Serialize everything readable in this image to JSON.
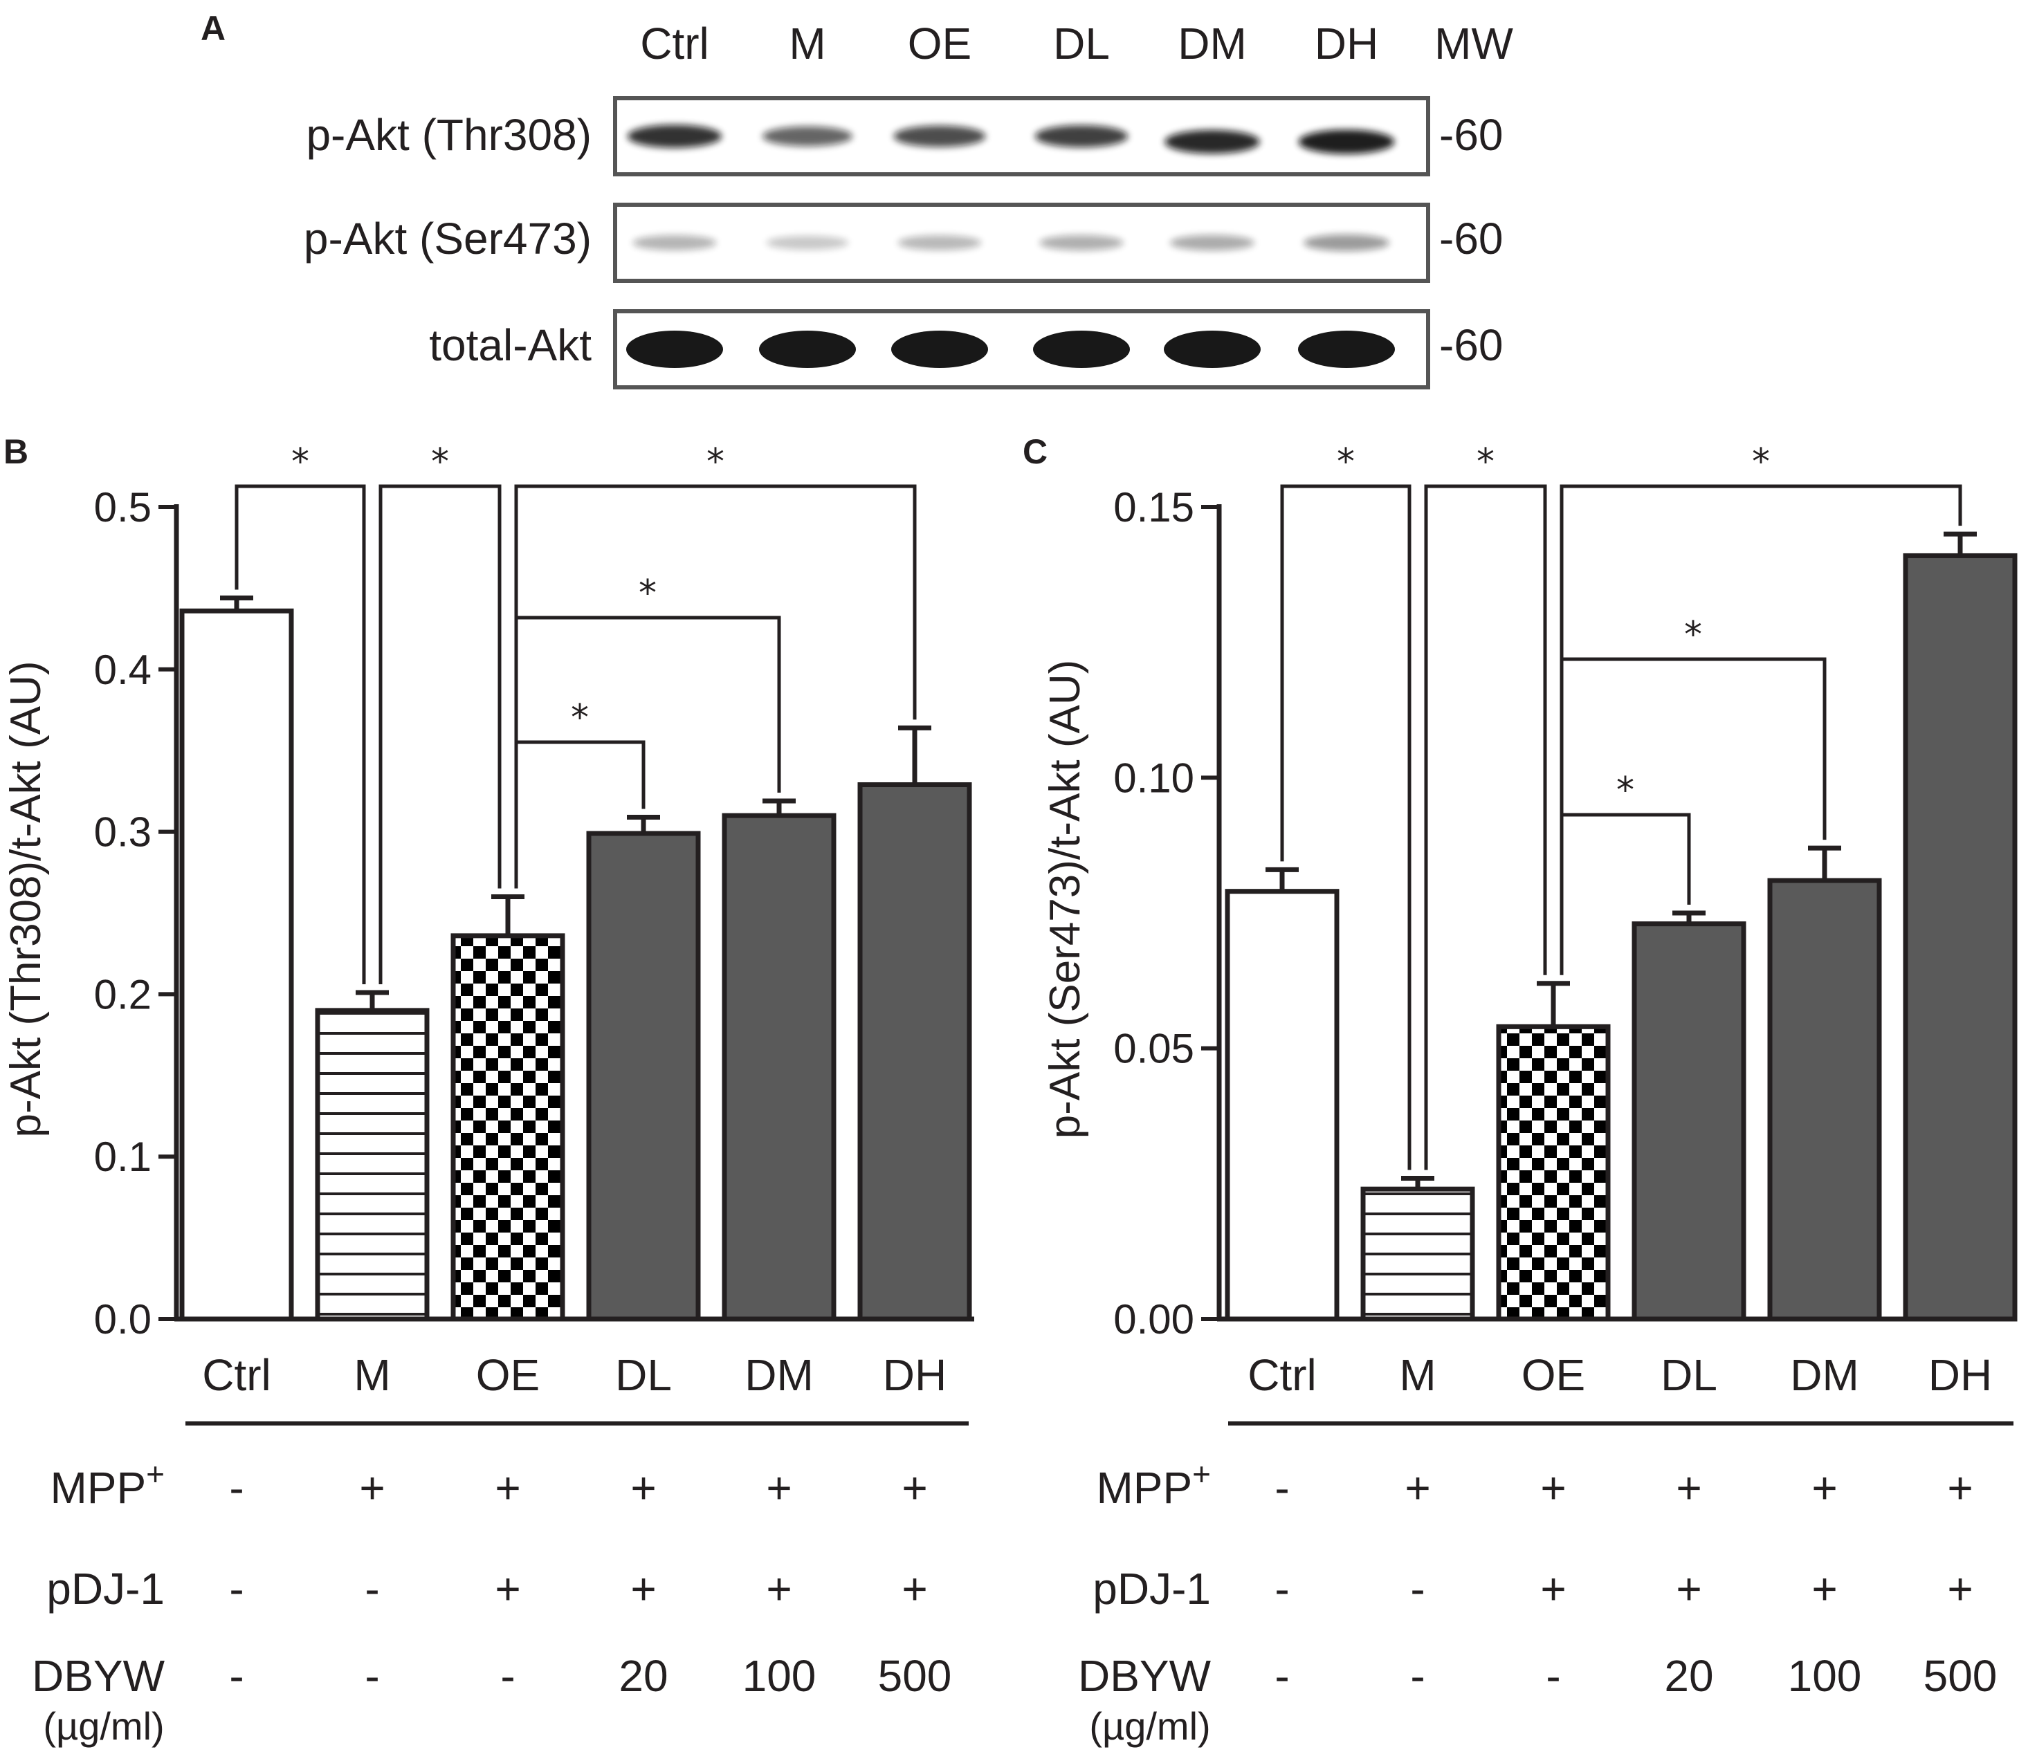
{
  "panel_a": {
    "label": "A",
    "lanes": [
      "Ctrl",
      "M",
      "OE",
      "DL",
      "DM",
      "DH"
    ],
    "mw_header": "MW",
    "blots": [
      {
        "label": "p-Akt (Thr308)",
        "mw": "-60",
        "intensities": [
          0.85,
          0.6,
          0.72,
          0.78,
          0.9,
          0.95
        ]
      },
      {
        "label": "p-Akt (Ser473)",
        "mw": "-60",
        "intensities": [
          0.22,
          0.12,
          0.2,
          0.24,
          0.26,
          0.34
        ]
      },
      {
        "label": "total-Akt",
        "mw": "-60",
        "intensities": [
          1.0,
          1.0,
          1.0,
          1.0,
          1.0,
          1.0
        ]
      }
    ]
  },
  "chart_data": [
    {
      "panel": "B",
      "type": "bar",
      "categories": [
        "Ctrl",
        "M",
        "OE",
        "DL",
        "DM",
        "DH"
      ],
      "values": [
        0.436,
        0.19,
        0.236,
        0.299,
        0.31,
        0.329
      ],
      "errors": [
        0.008,
        0.011,
        0.024,
        0.01,
        0.009,
        0.035
      ],
      "patterns": [
        "white",
        "hlines",
        "checker",
        "gray",
        "gray",
        "gray"
      ],
      "ylabel": "p-Akt (Thr308)/t-Akt (AU)",
      "ylim": [
        0,
        0.5
      ],
      "yticks": [
        "0.0",
        "0.1",
        "0.2",
        "0.3",
        "0.4",
        "0.5"
      ],
      "yticks_values": [
        0,
        0.1,
        0.2,
        0.3,
        0.4,
        0.5
      ],
      "significance": [
        {
          "from": 0,
          "to": 1,
          "level": 0,
          "label": "*"
        },
        {
          "from": 1,
          "to": 2,
          "level": 0,
          "label": "*"
        },
        {
          "from": 2,
          "to": 5,
          "level": 0,
          "label": "*"
        },
        {
          "from": 2,
          "to": 4,
          "level": 1,
          "label": "*"
        },
        {
          "from": 2,
          "to": 3,
          "level": 2,
          "label": "*"
        }
      ]
    },
    {
      "panel": "C",
      "type": "bar",
      "categories": [
        "Ctrl",
        "M",
        "OE",
        "DL",
        "DM",
        "DH"
      ],
      "values": [
        0.079,
        0.024,
        0.054,
        0.073,
        0.081,
        0.141
      ],
      "errors": [
        0.004,
        0.002,
        0.008,
        0.002,
        0.006,
        0.004
      ],
      "patterns": [
        "white",
        "hlines",
        "checker",
        "gray",
        "gray",
        "gray"
      ],
      "ylabel": "p-Akt (Ser473)/t-Akt (AU)",
      "ylim": [
        0,
        0.15
      ],
      "yticks": [
        "0.00",
        "0.05",
        "0.10",
        "0.15"
      ],
      "yticks_values": [
        0,
        0.05,
        0.1,
        0.15
      ],
      "significance": [
        {
          "from": 0,
          "to": 1,
          "level": 0,
          "label": "*"
        },
        {
          "from": 1,
          "to": 2,
          "level": 0,
          "label": "*"
        },
        {
          "from": 2,
          "to": 5,
          "level": 0,
          "label": "*"
        },
        {
          "from": 2,
          "to": 4,
          "level": 1,
          "label": "*"
        },
        {
          "from": 2,
          "to": 3,
          "level": 2,
          "label": "*"
        }
      ]
    }
  ],
  "treatments": {
    "rows": [
      {
        "label": "MPP",
        "superscript": "+",
        "values": [
          "-",
          "+",
          "+",
          "+",
          "+",
          "+"
        ]
      },
      {
        "label": "pDJ-1",
        "superscript": "",
        "values": [
          "-",
          "-",
          "+",
          "+",
          "+",
          "+"
        ]
      },
      {
        "label": "DBYW",
        "superscript": "",
        "values": [
          "-",
          "-",
          "-",
          "20",
          "100",
          "500"
        ]
      }
    ],
    "unit": "(µg/ml)"
  },
  "colors": {
    "ink": "#231f20",
    "bar_gray": "#5a5a5a",
    "blot_frame": "#555555",
    "band": "#111111"
  }
}
